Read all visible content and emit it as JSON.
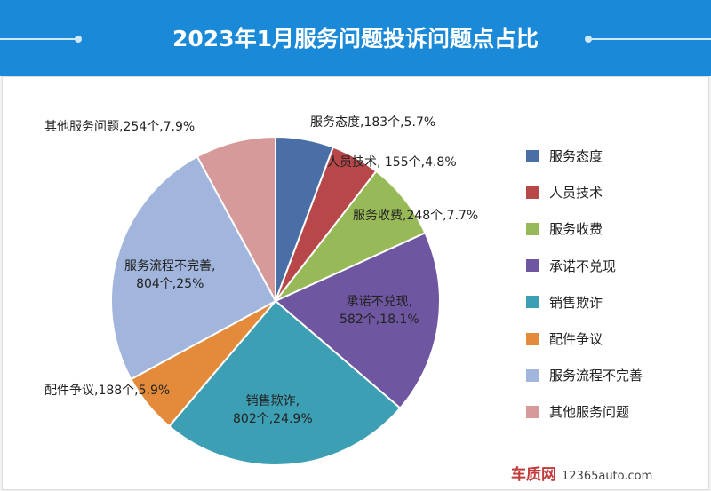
{
  "chart_data": {
    "type": "pie",
    "title": "2023年1月服务问题投诉问题点占比",
    "slices": [
      {
        "name": "服务态度",
        "count": 183,
        "percent": 5.7,
        "label": "服务态度,183个,5.7%",
        "color": "#4a6ea6"
      },
      {
        "name": "人员技术",
        "count": 155,
        "percent": 4.8,
        "label": "人员技术, 155个,4.8%",
        "color": "#b8474a"
      },
      {
        "name": "服务收费",
        "count": 248,
        "percent": 7.7,
        "label": "服务收费,248个,7.7%",
        "color": "#98b957"
      },
      {
        "name": "承诺不兑现",
        "count": 582,
        "percent": 18.1,
        "label": "承诺不兑现,",
        "label2": "582个,18.1%",
        "color": "#6f56a0"
      },
      {
        "name": "销售欺诈",
        "count": 802,
        "percent": 24.9,
        "label": "销售欺诈,",
        "label2": "802个,24.9%",
        "color": "#3d9fb4"
      },
      {
        "name": "配件争议",
        "count": 188,
        "percent": 5.9,
        "label": "配件争议,188个,5.9%",
        "color": "#e38b3a"
      },
      {
        "name": "服务流程不完善",
        "count": 804,
        "percent": 25,
        "label": "服务流程不完善,",
        "label2": "804个,25%",
        "color": "#a2b6dd"
      },
      {
        "name": "其他服务问题",
        "count": 254,
        "percent": 7.9,
        "label": "其他服务问题,254个,7.9%",
        "color": "#d59a99"
      }
    ],
    "legend_position": "right"
  },
  "watermark": {
    "brand": "车质网",
    "site": "12365auto.com"
  }
}
